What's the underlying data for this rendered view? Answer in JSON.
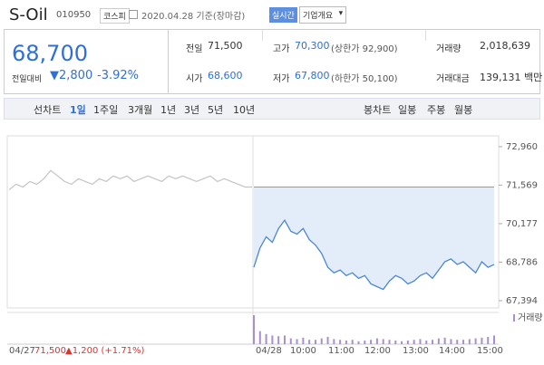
{
  "header": {
    "name": "S-Oil",
    "code": "010950",
    "market": "코스피",
    "date": "2020.04.28 기준(장마감)",
    "realtime": "실시간",
    "company": "기업개요"
  },
  "summary": {
    "price": "68,700",
    "change_label": "전일대비",
    "change": "2,800",
    "change_pct": "-3.92%",
    "fields": [
      {
        "label": "전일",
        "value": "71,500"
      },
      {
        "label": "고가",
        "value": "70,300",
        "note": "(상한가 92,900)"
      },
      {
        "label": "거래량",
        "value": "2,018,639"
      },
      {
        "label": "시가",
        "value": "68,600"
      },
      {
        "label": "저가",
        "value": "67,800",
        "note": "(하한가 50,100)"
      },
      {
        "label": "거래대금",
        "value": "139,131 백만"
      }
    ]
  },
  "tabs": {
    "line_chart": "선차트",
    "periods": [
      "1일",
      "1주일",
      "3개월",
      "1년",
      "3년",
      "5년",
      "10년"
    ],
    "candle_chart": "봉차트",
    "candles": [
      "일봉",
      "주봉",
      "월봉"
    ]
  },
  "chart": {
    "type": "line",
    "ylim": [
      67130,
      73350
    ],
    "yticks": [
      {
        "value": 72960,
        "label": "72,960"
      },
      {
        "value": 71569,
        "label": "71,569"
      },
      {
        "value": 70177,
        "label": "70,177"
      },
      {
        "value": 68786,
        "label": "68,786"
      },
      {
        "value": 67394,
        "label": "67,394"
      }
    ],
    "reference": 71500,
    "previous": {
      "color": "#c4c4c4",
      "values": [
        71400,
        71600,
        71500,
        71700,
        71600,
        71800,
        72100,
        71900,
        71700,
        71600,
        71800,
        71700,
        71600,
        71800,
        71700,
        71900,
        71800,
        71900,
        71700,
        71800,
        71900,
        71800,
        71700,
        71900,
        71800,
        71900,
        71800,
        71700,
        71800,
        71900,
        71700,
        71800,
        71700,
        71600,
        71500,
        71500
      ]
    },
    "today": {
      "color": "#4a86d8",
      "fill": "#e3edf9",
      "values": [
        68600,
        69300,
        69700,
        69500,
        70000,
        70300,
        69900,
        69800,
        70000,
        69600,
        69400,
        69100,
        68600,
        68400,
        68500,
        68300,
        68400,
        68200,
        68300,
        68000,
        67900,
        67800,
        68100,
        68300,
        68200,
        68000,
        68100,
        68300,
        68400,
        68200,
        68500,
        68800,
        68900,
        68700,
        68800,
        68600,
        68400,
        68800,
        68600,
        68700
      ]
    },
    "volume": {
      "label": "거래량",
      "color": "#a88fd0",
      "values": [
        200000,
        90000,
        70000,
        60000,
        55000,
        60000,
        40000,
        35000,
        45000,
        30000,
        30000,
        40000,
        50000,
        35000,
        30000,
        25000,
        30000,
        20000,
        25000,
        30000,
        40000,
        35000,
        30000,
        25000,
        20000,
        25000,
        30000,
        35000,
        25000,
        30000,
        40000,
        45000,
        35000,
        30000,
        30000,
        35000,
        40000,
        45000,
        50000,
        60000
      ]
    },
    "prev_day": "04/27",
    "prev_close": "71,500",
    "prev_change": "▲1,200 (+1.71%)",
    "xtick_labels": [
      "04/28",
      "10:00",
      "11:00",
      "12:00",
      "13:00",
      "14:00",
      "15:00"
    ]
  }
}
